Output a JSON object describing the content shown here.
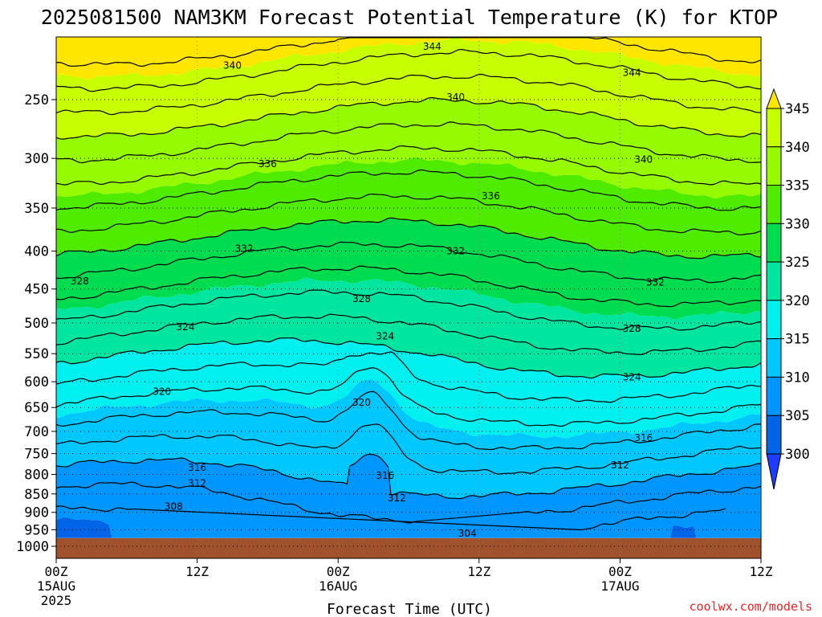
{
  "chart_data": {
    "type": "heatmap",
    "title": "2025081500 NAM3KM Forecast Potential Temperature (K) for KTOP",
    "xlabel": "Forecast Time (UTC)",
    "ylabel": "",
    "credit": "coolwx.com/models",
    "x_ticks": [
      {
        "hours": 0,
        "label": "00Z",
        "sub1": "15AUG",
        "sub2": "2025"
      },
      {
        "hours": 12,
        "label": "12Z",
        "sub1": "",
        "sub2": ""
      },
      {
        "hours": 24,
        "label": "00Z",
        "sub1": "16AUG",
        "sub2": ""
      },
      {
        "hours": 36,
        "label": "12Z",
        "sub1": "",
        "sub2": ""
      },
      {
        "hours": 48,
        "label": "00Z",
        "sub1": "17AUG",
        "sub2": ""
      },
      {
        "hours": 60,
        "label": "12Z",
        "sub1": "",
        "sub2": ""
      }
    ],
    "xlim": [
      0,
      60
    ],
    "y_ticks": [
      250,
      300,
      350,
      400,
      450,
      500,
      550,
      600,
      650,
      700,
      750,
      800,
      850,
      900,
      950,
      1000
    ],
    "y_ticks_text": [
      "250",
      "300",
      "350",
      "400",
      "450",
      "500",
      "550",
      "600",
      "650",
      "700",
      "750",
      "800",
      "850",
      "900",
      "950",
      "1000"
    ],
    "ylim": [
      1050,
      200
    ],
    "ground_pressure": 975,
    "y_scale": "log",
    "grid": true,
    "colorbar": {
      "levels": [
        300,
        305,
        310,
        315,
        320,
        325,
        330,
        335,
        340,
        345
      ],
      "labels": [
        "300",
        "305",
        "310",
        "315",
        "320",
        "325",
        "330",
        "335",
        "340",
        "345"
      ],
      "colors": [
        "#1e3cff",
        "#0064e6",
        "#0096ff",
        "#00c8ff",
        "#00f0f0",
        "#00e6a0",
        "#00dc50",
        "#50ec00",
        "#96fa00",
        "#c8ff00",
        "#ffe600"
      ],
      "placement": "right"
    },
    "contours": [
      {
        "value": 304,
        "label": "304",
        "label_at": [
          [
            35,
            961
          ]
        ]
      },
      {
        "value": 308,
        "label": "308",
        "label_at": [
          [
            10,
            884
          ]
        ]
      },
      {
        "value": 312,
        "label": "312",
        "label_at": [
          [
            12,
            822
          ],
          [
            29,
            861
          ],
          [
            48,
            777
          ]
        ]
      },
      {
        "value": 316,
        "label": "316",
        "label_at": [
          [
            12,
            783
          ],
          [
            28,
            803
          ],
          [
            50,
            714
          ]
        ]
      },
      {
        "value": 320,
        "label": "320",
        "label_at": [
          [
            9,
            619
          ],
          [
            26,
            640
          ]
        ]
      },
      {
        "value": 324,
        "label": "324",
        "label_at": [
          [
            11,
            506
          ],
          [
            28,
            521
          ],
          [
            49,
            592
          ]
        ]
      },
      {
        "value": 328,
        "label": "328",
        "label_at": [
          [
            2,
            439
          ],
          [
            26,
            464
          ],
          [
            49,
            509
          ]
        ]
      },
      {
        "value": 332,
        "label": "332",
        "label_at": [
          [
            16,
            397
          ],
          [
            34,
            400
          ],
          [
            51,
            441
          ]
        ]
      },
      {
        "value": 336,
        "label": "336",
        "label_at": [
          [
            18,
            305
          ],
          [
            37,
            337
          ]
        ]
      },
      {
        "value": 340,
        "label": "340",
        "label_at": [
          [
            15,
            225
          ],
          [
            34,
            248
          ],
          [
            50,
            301
          ]
        ]
      },
      {
        "value": 344,
        "label": "344",
        "label_at": [
          [
            32,
            212
          ],
          [
            49,
            230
          ]
        ]
      }
    ]
  }
}
